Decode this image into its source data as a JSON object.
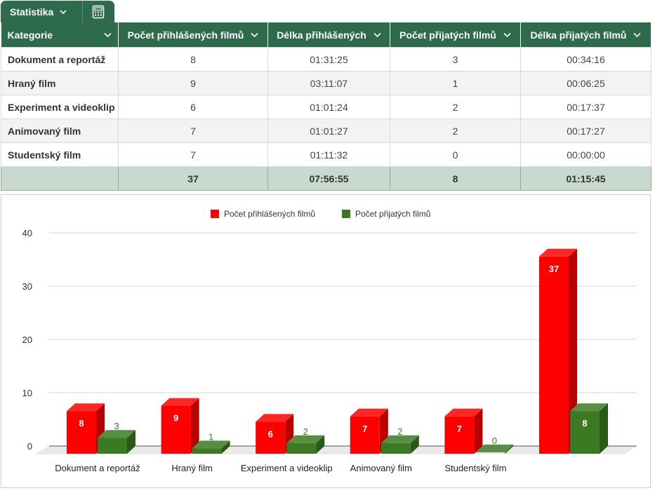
{
  "tab": {
    "label": "Statistika",
    "calc_icon": "calculator-icon"
  },
  "table": {
    "headers": [
      "Kategorie",
      "Počet přihlášených filmů",
      "Délka přihlášených",
      "Počet přijatých filmů",
      "Délka přijatých filmů"
    ],
    "rows": [
      [
        "Dokument a reportáž",
        "8",
        "01:31:25",
        "3",
        "00:34:16"
      ],
      [
        "Hraný film",
        "9",
        "03:11:07",
        "1",
        "00:06:25"
      ],
      [
        "Experiment a videoklip",
        "6",
        "01:01:24",
        "2",
        "00:17:37"
      ],
      [
        "Animovaný film",
        "7",
        "01:01:27",
        "2",
        "00:17:27"
      ],
      [
        "Studentský film",
        "7",
        "01:11:32",
        "0",
        "00:00:00"
      ]
    ],
    "totals": [
      "",
      "37",
      "07:56:55",
      "8",
      "01:15:45"
    ]
  },
  "colors": {
    "header": "#2e6b4c",
    "red": "#ff0000",
    "green": "#3b7a22",
    "total_row": "#c8d9d0"
  },
  "chart_data": {
    "type": "bar",
    "categories": [
      "Dokument a reportáž",
      "Hraný film",
      "Experiment a videoklip",
      "Animovaný film",
      "Studentský film",
      ""
    ],
    "series": [
      {
        "name": "Počet přihlášených filmů",
        "values": [
          8,
          9,
          6,
          7,
          7,
          37
        ],
        "color": "#ff0000"
      },
      {
        "name": "Počet přijatých filmů",
        "values": [
          3,
          1,
          2,
          2,
          0,
          8
        ],
        "color": "#3b7a22"
      }
    ],
    "ylim": [
      0,
      40
    ],
    "yticks": [
      0,
      10,
      20,
      30,
      40
    ],
    "grid": true,
    "legend": "top-center",
    "style": "3d"
  }
}
